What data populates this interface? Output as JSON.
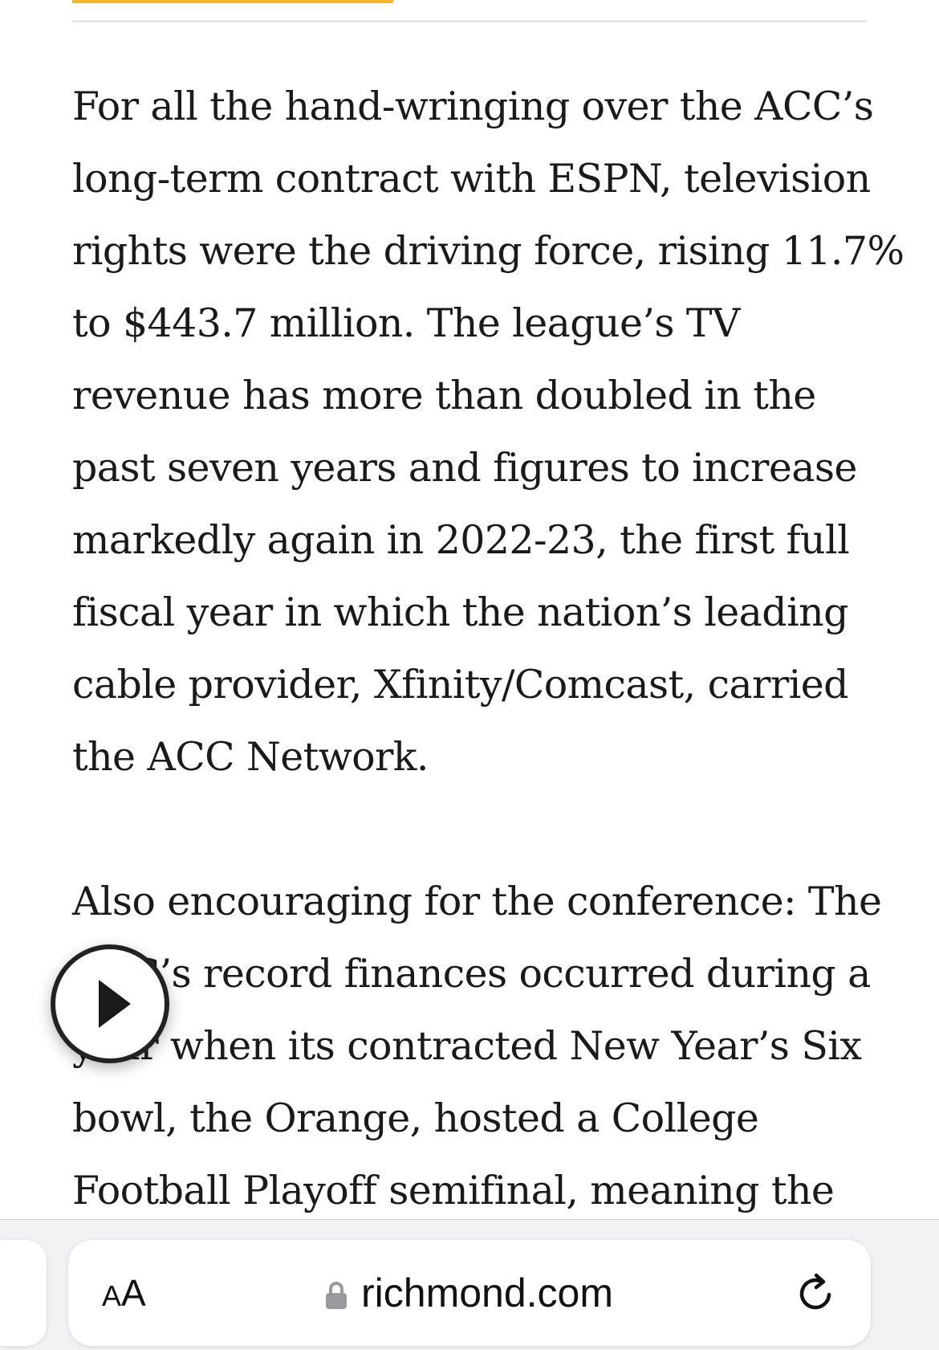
{
  "article": {
    "paragraphs": [
      {
        "lines": [
          "For all the hand-wringing over the ACC’s",
          "long-term contract with ESPN, television",
          "rights were the driving force, rising 11.7%",
          "to $443.7 million. The league’s TV",
          "revenue has more than doubled in the",
          "past seven years and figures to increase",
          "markedly again in 2022-23, the first full",
          "fiscal year in which the nation’s leading",
          "cable provider, Xfinity/Comcast, carried",
          "the ACC Network."
        ]
      },
      {
        "lines": [
          "Also encouraging for the conference: The",
          "ACC’s record finances occurred during a",
          "year when its contracted New Year’s Six",
          "bowl, the Orange, hosted a College",
          "Football Playoff semifinal, meaning the"
        ]
      }
    ]
  },
  "media": {
    "play_icon": "play-icon"
  },
  "browser": {
    "text_size_label_small": "A",
    "text_size_label_large": "A",
    "url": "richmond.com",
    "lock_icon": "lock-icon",
    "reload_icon": "reload-icon",
    "accent_color": "#f5b731"
  }
}
